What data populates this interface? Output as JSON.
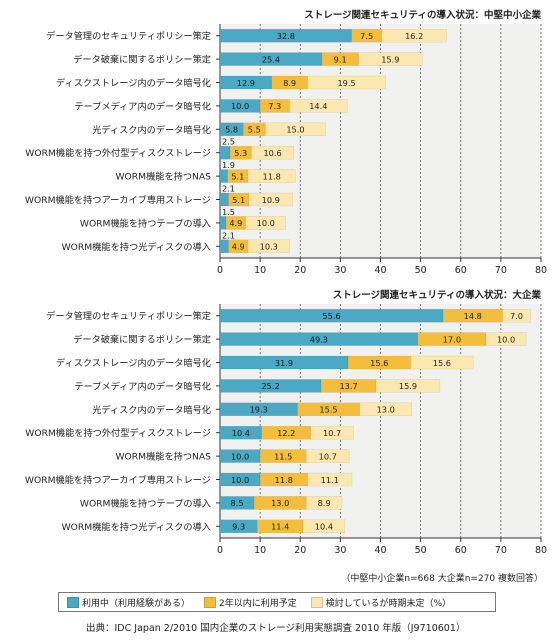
{
  "colors": {
    "using": "#4ba9c5",
    "plan2y": "#f4be3c",
    "undecided": "#fbe7b0",
    "plot_bg": "#f1f1ef"
  },
  "legend": {
    "using": "利用中（利用経験がある）",
    "plan2y": "2年以内に利用予定",
    "undecided": "検討しているが時期未定（%）"
  },
  "note": "（中堅中小企業n=668 大企業n=270 複数回答）",
  "source": "出典：IDC Japan 2/2010 国内企業のストレージ利用実態調査 2010 年版（J9710601）",
  "chart_data": [
    {
      "type": "bar",
      "stacked": true,
      "orientation": "horizontal",
      "title": "ストレージ関連セキュリティの導入状況：中堅中小企業",
      "categories": [
        "データ管理のセキュリティポリシー策定",
        "データ破棄に関するポリシー策定",
        "ディスクストレージ内のデータ暗号化",
        "テープメディア内のデータ暗号化",
        "光ディスク内のデータ暗号化",
        "WORM機能を持つ外付型ディスクストレージ",
        "WORM機能を持つNAS",
        "WORM機能を持つアーカイブ専用ストレージ",
        "WORM機能を持つテープの導入",
        "WORM機能を持つ光ディスクの導入"
      ],
      "series": [
        {
          "name": "利用中（利用経験がある）",
          "values": [
            32.8,
            25.4,
            12.9,
            10.0,
            5.8,
            2.5,
            1.9,
            2.1,
            1.5,
            2.1
          ]
        },
        {
          "name": "2年以内に利用予定",
          "values": [
            7.5,
            9.1,
            8.9,
            7.3,
            5.5,
            5.3,
            5.1,
            5.1,
            4.9,
            4.9
          ]
        },
        {
          "name": "検討しているが時期未定（%）",
          "values": [
            16.2,
            15.9,
            19.5,
            14.4,
            15.0,
            10.6,
            11.8,
            10.9,
            10.0,
            10.3
          ]
        }
      ],
      "xlim": [
        0,
        80
      ],
      "xticks": [
        "0",
        "10",
        "20",
        "30",
        "40",
        "50",
        "60",
        "70",
        "80"
      ],
      "grid": "dashed vertical"
    },
    {
      "type": "bar",
      "stacked": true,
      "orientation": "horizontal",
      "title": "ストレージ関連セキュリティの導入状況：大企業",
      "categories": [
        "データ管理のセキュリティポリシー策定",
        "データ破棄に関するポリシー策定",
        "ディスクストレージ内のデータ暗号化",
        "テープメディア内のデータ暗号化",
        "光ディスク内のデータ暗号化",
        "WORM機能を持つ外付型ディスクストレージ",
        "WORM機能を持つNAS",
        "WORM機能を持つアーカイブ専用ストレージ",
        "WORM機能を持つテープの導入",
        "WORM機能を持つ光ディスクの導入"
      ],
      "series": [
        {
          "name": "利用中（利用経験がある）",
          "values": [
            55.6,
            49.3,
            31.9,
            25.2,
            19.3,
            10.4,
            10.0,
            10.0,
            8.5,
            9.3
          ]
        },
        {
          "name": "2年以内に利用予定",
          "values": [
            14.8,
            17.0,
            15.6,
            13.7,
            15.5,
            12.2,
            11.5,
            11.8,
            13.0,
            11.4
          ]
        },
        {
          "name": "検討しているが時期未定（%）",
          "values": [
            7.0,
            10.0,
            15.6,
            15.9,
            13.0,
            10.7,
            10.7,
            11.1,
            8.9,
            10.4
          ]
        }
      ],
      "xlim": [
        0,
        80
      ],
      "xticks": [
        "0",
        "10",
        "20",
        "30",
        "40",
        "50",
        "60",
        "70",
        "80"
      ],
      "grid": "dashed vertical"
    }
  ]
}
